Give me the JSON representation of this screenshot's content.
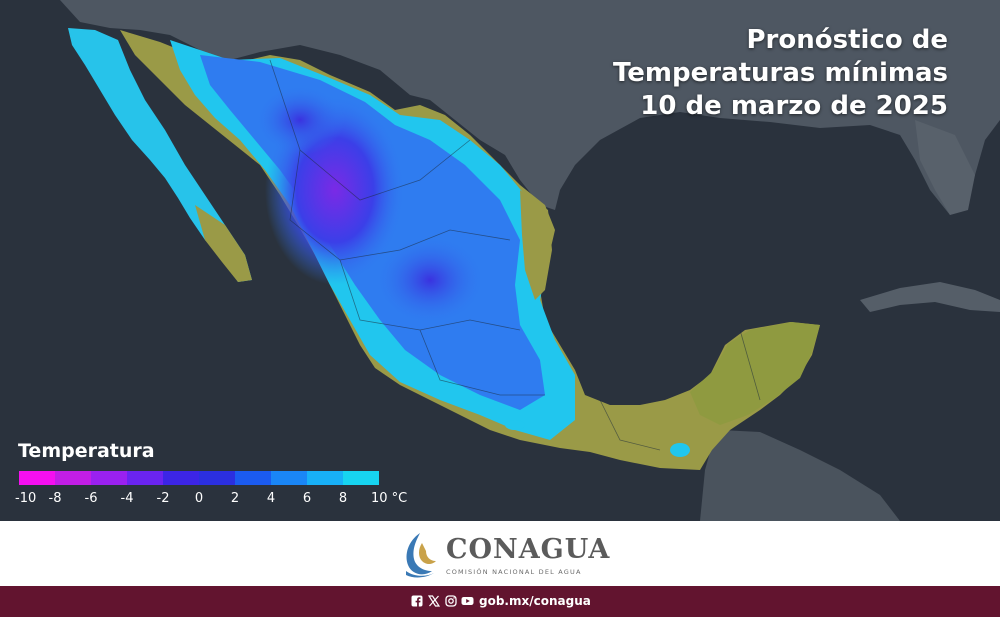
{
  "title": {
    "line1": "Pronóstico de",
    "line2": "Temperaturas mínimas",
    "line3": "10 de marzo de 2025"
  },
  "legend": {
    "title": "Temperatura",
    "unit": "°C",
    "colors": [
      "#f50ff0",
      "#c21ee6",
      "#9a21ef",
      "#6a24f0",
      "#3c25e6",
      "#2b2fe0",
      "#1b5bf0",
      "#1a86f6",
      "#18b0f7",
      "#17d4f0"
    ],
    "ticks": [
      "-10",
      "-8",
      "-6",
      "-4",
      "-2",
      "0",
      "2",
      "4",
      "6",
      "8",
      "10 °C"
    ]
  },
  "map_colors": {
    "ocean": "#2c3440",
    "land_dark": "#4d5660",
    "warm_land": "#9b9a48",
    "cold_core": "#5a2ce0",
    "cool": "#2f7cf0",
    "mild": "#20c6ee"
  },
  "logo": {
    "name": "CONAGUA",
    "subtitle": "COMISIÓN NACIONAL DEL AGUA",
    "brand_color": "#5b5b5b"
  },
  "footer": {
    "social_icons": [
      "facebook-icon",
      "x-icon",
      "instagram-icon",
      "youtube-icon"
    ],
    "website": "gob.mx/conagua",
    "background": "#62142f"
  }
}
